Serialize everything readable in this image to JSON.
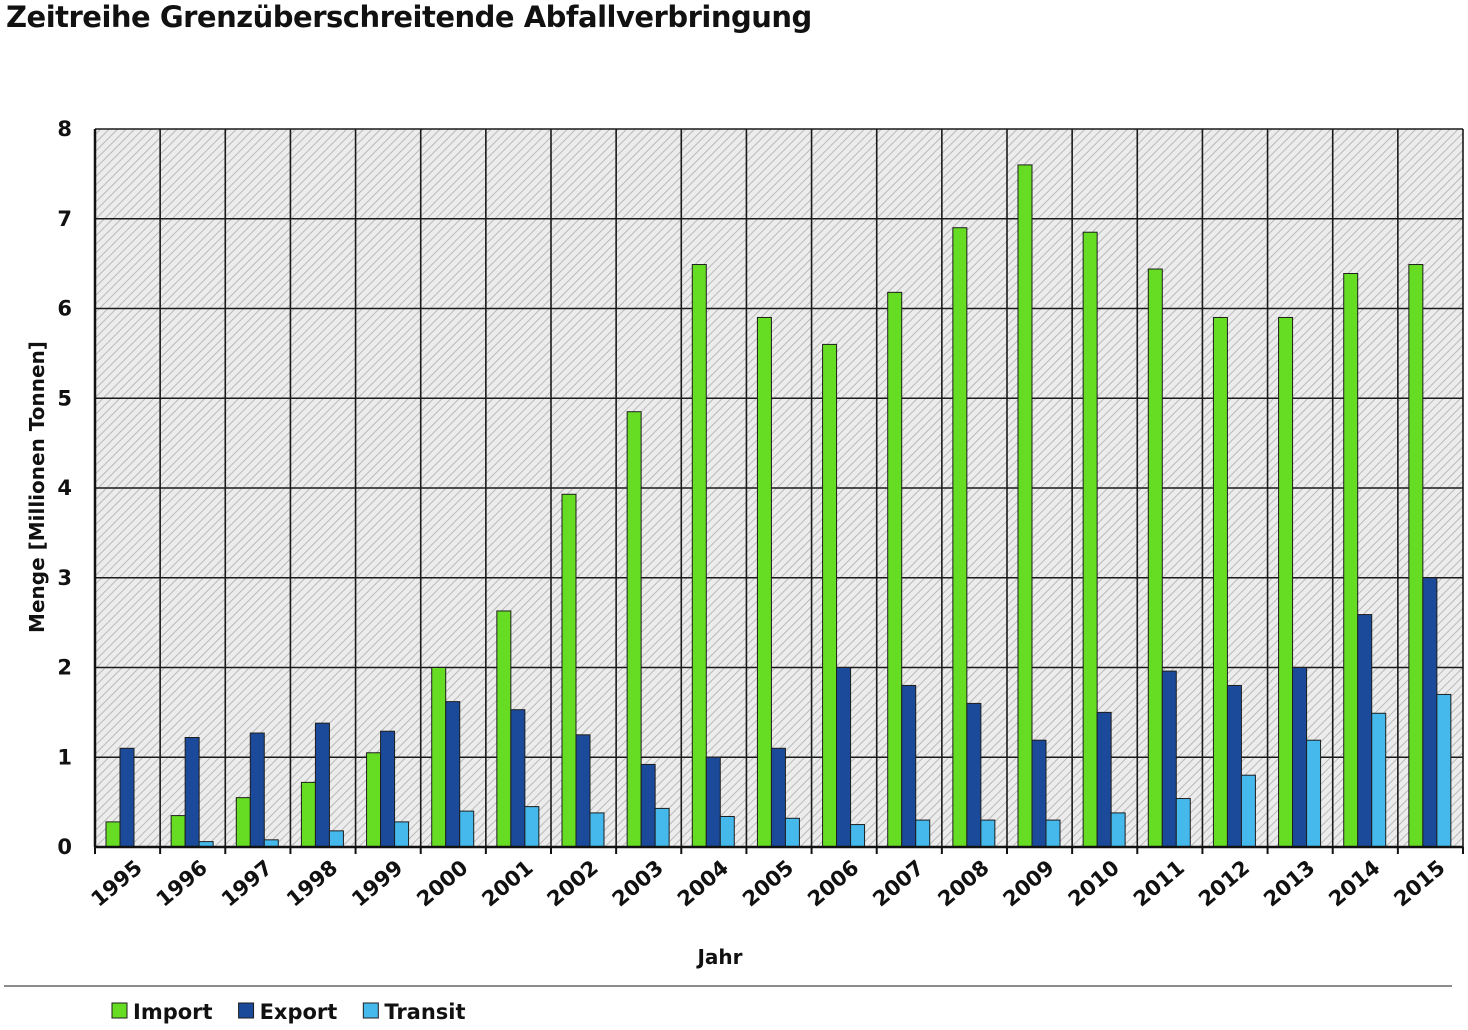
{
  "chart_data": {
    "type": "bar",
    "title": "Zeitreihe Grenzüberschreitende Abfallverbringung",
    "xlabel": "Jahr",
    "ylabel": "Menge [Millionen Tonnen]",
    "ylim": [
      0,
      8
    ],
    "yticks": [
      "0",
      "1",
      "2",
      "3",
      "4",
      "5",
      "6",
      "7",
      "8"
    ],
    "grid": true,
    "legend_position": "bottom-left",
    "categories": [
      "1995",
      "1996",
      "1997",
      "1998",
      "1999",
      "2000",
      "2001",
      "2002",
      "2003",
      "2004",
      "2005",
      "2006",
      "2007",
      "2008",
      "2009",
      "2010",
      "2011",
      "2012",
      "2013",
      "2014",
      "2015"
    ],
    "series": [
      {
        "name": "Import",
        "color": "#66dd22",
        "values": [
          0.28,
          0.35,
          0.55,
          0.72,
          1.05,
          2.0,
          2.63,
          3.93,
          4.85,
          6.49,
          5.9,
          5.6,
          6.18,
          6.9,
          7.6,
          6.85,
          6.44,
          5.9,
          5.9,
          6.39,
          6.49
        ]
      },
      {
        "name": "Export",
        "color": "#1b4a9a",
        "values": [
          1.1,
          1.22,
          1.27,
          1.38,
          1.29,
          1.62,
          1.53,
          1.25,
          0.92,
          1.0,
          1.1,
          2.0,
          1.8,
          1.6,
          1.19,
          1.5,
          1.96,
          1.8,
          2.0,
          2.59,
          3.0
        ]
      },
      {
        "name": "Transit",
        "color": "#45b8ec",
        "values": [
          0.0,
          0.06,
          0.08,
          0.18,
          0.28,
          0.4,
          0.45,
          0.38,
          0.43,
          0.34,
          0.32,
          0.25,
          0.3,
          0.3,
          0.3,
          0.38,
          0.54,
          0.8,
          1.19,
          1.49,
          1.7
        ]
      }
    ]
  }
}
